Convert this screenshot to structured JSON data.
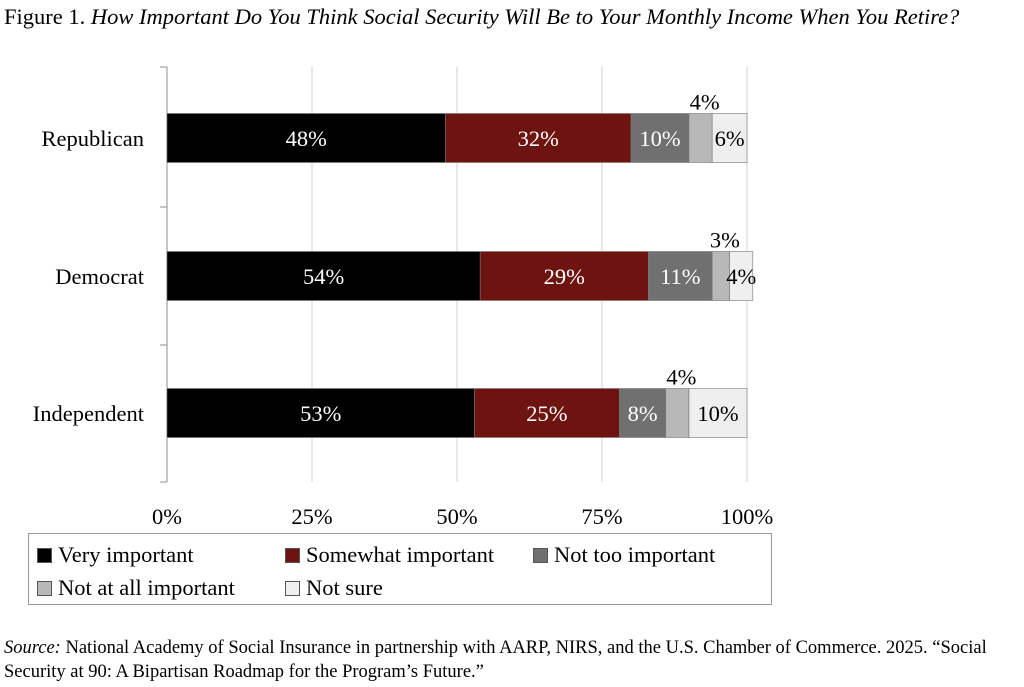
{
  "figure": {
    "label": "Figure 1.",
    "title": "How Important Do You Think Social Security Will Be to Your Monthly Income When You Retire?"
  },
  "chart_data": {
    "type": "bar",
    "orientation": "horizontal",
    "stacked": true,
    "categories": [
      "Republican",
      "Democrat",
      "Independent"
    ],
    "series": [
      {
        "name": "Very important",
        "values": [
          48,
          54,
          53
        ],
        "color": "#000000",
        "labels": [
          "48%",
          "54%",
          "53%"
        ]
      },
      {
        "name": "Somewhat important",
        "values": [
          32,
          29,
          25
        ],
        "color": "#6e1410",
        "labels": [
          "32%",
          "29%",
          "25%"
        ]
      },
      {
        "name": "Not too important",
        "values": [
          10,
          11,
          8
        ],
        "color": "#707070",
        "labels": [
          "10%",
          "11%",
          "8%"
        ]
      },
      {
        "name": "Not at all important",
        "values": [
          4,
          3,
          4
        ],
        "color": "#b8b8b8",
        "labels": [
          "4%",
          "3%",
          "4%"
        ]
      },
      {
        "name": "Not sure",
        "values": [
          6,
          4,
          10
        ],
        "color": "#efefef",
        "labels": [
          "6%",
          "4%",
          "10%"
        ]
      }
    ],
    "xlim": [
      0,
      100
    ],
    "xticks": [
      0,
      25,
      50,
      75,
      100
    ],
    "xtick_labels": [
      "0%",
      "25%",
      "50%",
      "75%",
      "100%"
    ],
    "grid": true,
    "legend_position": "bottom"
  },
  "legend": [
    {
      "label": "Very important",
      "color": "#000000"
    },
    {
      "label": "Somewhat important",
      "color": "#6e1410"
    },
    {
      "label": "Not too important",
      "color": "#707070"
    },
    {
      "label": "Not at all important",
      "color": "#b8b8b8"
    },
    {
      "label": "Not sure",
      "color": "#efefef"
    }
  ],
  "source": {
    "label": "Source:",
    "text": "National Academy of Social Insurance in partnership with AARP, NIRS, and the U.S. Chamber of Commerce. 2025. “Social Security at 90: A Bipartisan Roadmap for the Program’s Future.”"
  }
}
